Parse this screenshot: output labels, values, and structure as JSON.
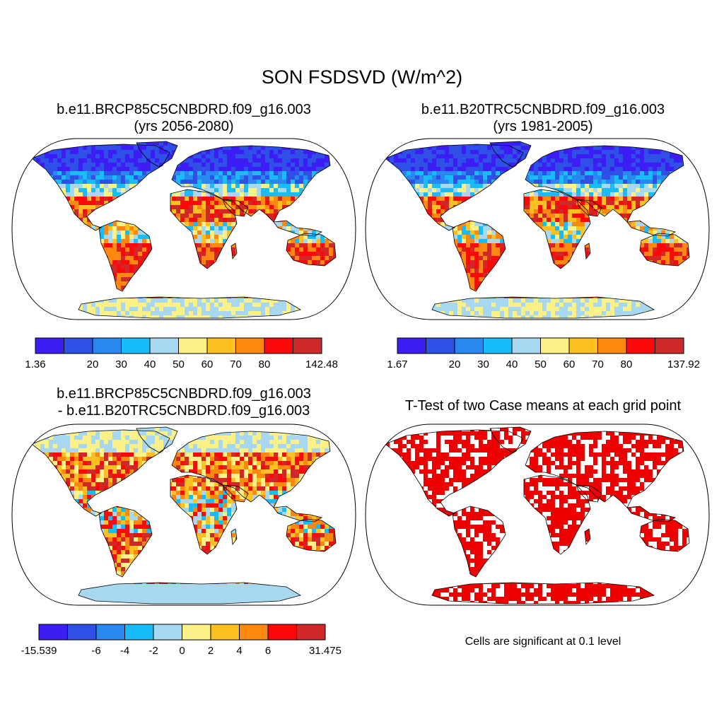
{
  "title": "SON FSDSVD (W/m^2)",
  "panels": [
    {
      "id": "p1",
      "case_line": "b.e11.BRCP85C5CNBDRD.f09_g16.003",
      "sub_line": "(yrs 2056-2080)",
      "colorbar": {
        "labels": [
          "1.36",
          "",
          "20",
          "30",
          "40",
          "50",
          "60",
          "70",
          "80",
          "",
          "142.48"
        ]
      }
    },
    {
      "id": "p2",
      "case_line": "b.e11.B20TRC5CNBDRD.f09_g16.003",
      "sub_line": "(yrs 1981-2005)",
      "colorbar": {
        "labels": [
          "1.67",
          "",
          "20",
          "30",
          "40",
          "50",
          "60",
          "70",
          "80",
          "",
          "137.92"
        ]
      }
    },
    {
      "id": "p3",
      "case_line": "b.e11.BRCP85C5CNBDRD.f09_g16.003",
      "sub_line": "- b.e11.B20TRC5CNBDRD.f09_g16.003",
      "colorbar": {
        "labels": [
          "-15.539",
          "",
          "-6",
          "-4",
          "-2",
          "0",
          "2",
          "4",
          "6",
          "",
          "31.475"
        ]
      }
    },
    {
      "id": "p4",
      "case_line": "T-Test of two Case means at each grid point",
      "note": "Cells are significant at 0.1 level"
    }
  ],
  "colors": {
    "palette": [
      "#3c1ef5",
      "#2f50e6",
      "#2888f0",
      "#18bcf8",
      "#a8d8f0",
      "#fcf088",
      "#fcc020",
      "#fc8810",
      "#fc0808",
      "#d02828"
    ],
    "significant": "#ee0000"
  }
}
